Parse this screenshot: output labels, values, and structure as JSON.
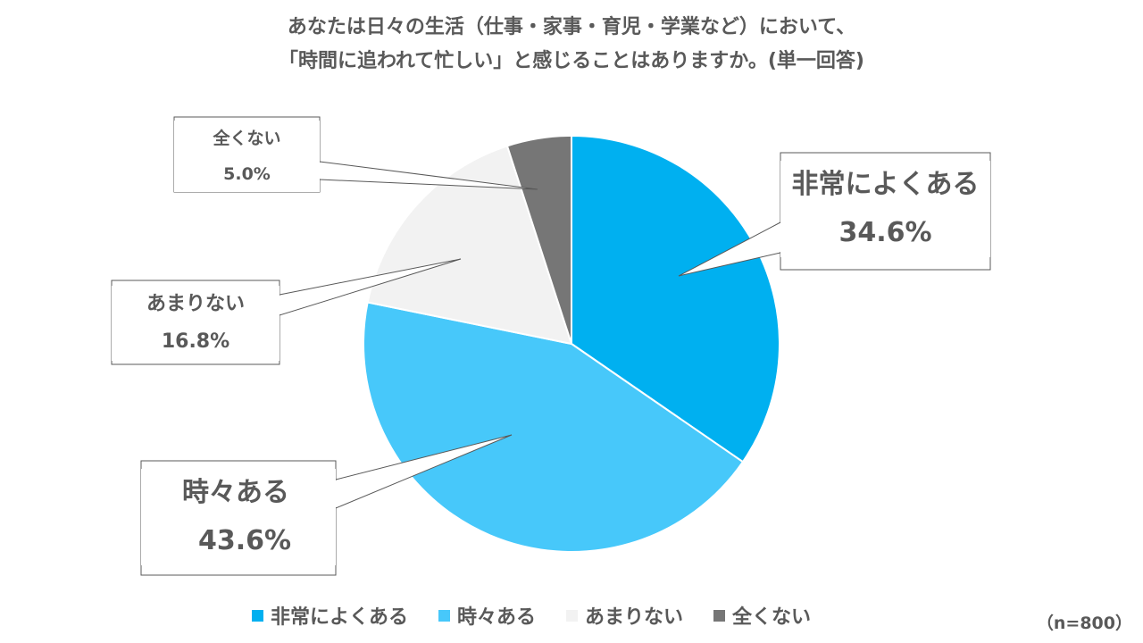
{
  "title": {
    "line1": "あなたは日々の生活（仕事・家事・育児・学業など）において、",
    "line2": "「時間に追われて忙しい」と感じることはありますか。(単一回答)"
  },
  "sample_note": "（n=800）",
  "legend": [
    {
      "label": "非常によくある",
      "color": "#00B0F0"
    },
    {
      "label": "時々ある",
      "color": "#47C8FA"
    },
    {
      "label": "あまりない",
      "color": "#F2F2F2"
    },
    {
      "label": "全くない",
      "color": "#767676"
    }
  ],
  "callouts": [
    {
      "label": "非常によくある",
      "value": "34.6%"
    },
    {
      "label": "時々ある",
      "value": "43.6%"
    },
    {
      "label": "あまりない",
      "value": "16.8%"
    },
    {
      "label": "全くない",
      "value": "5.0%"
    }
  ],
  "chart_data": {
    "type": "pie",
    "title": "あなたは日々の生活（仕事・家事・育児・学業など）において、「時間に追われて忙しい」と感じることはありますか。(単一回答)",
    "categories": [
      "非常によくある",
      "時々ある",
      "あまりない",
      "全くない"
    ],
    "values": [
      34.6,
      43.6,
      16.8,
      5.0
    ],
    "unit": "%",
    "colors": [
      "#00B0F0",
      "#47C8FA",
      "#F2F2F2",
      "#767676"
    ],
    "start_angle": "12 o'clock, clockwise",
    "legend_position": "bottom",
    "data_labels": "callouts with category name and percentage",
    "note": "（n=800）"
  }
}
